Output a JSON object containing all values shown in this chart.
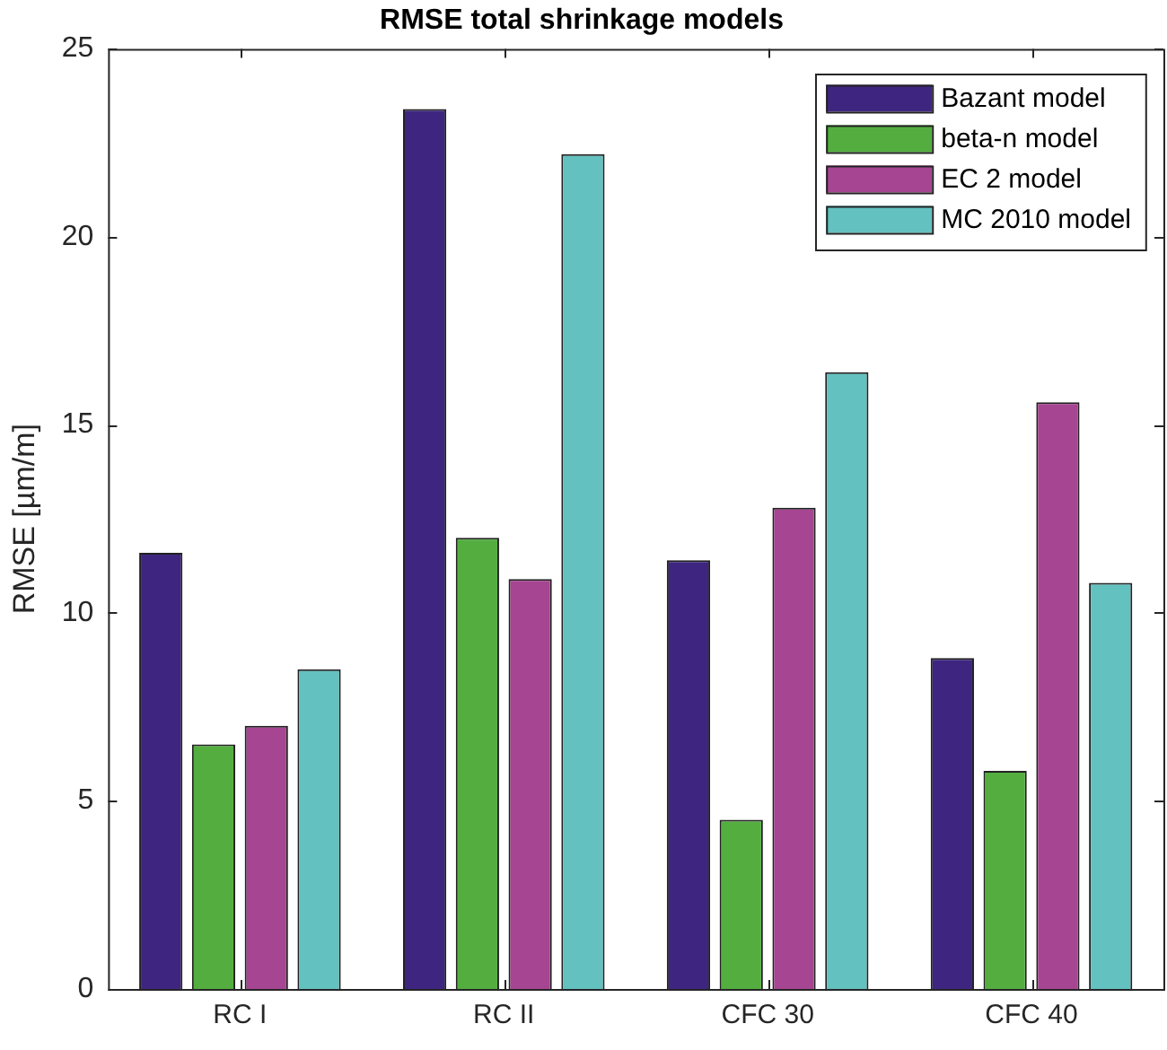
{
  "chart_data": {
    "type": "bar",
    "title": "RMSE total shrinkage models",
    "ylabel": "RMSE [µm/m]",
    "categories": [
      "RC I",
      "RC II",
      "CFC 30",
      "CFC 40"
    ],
    "series": [
      {
        "name": "Bazant model",
        "color": "#3e2680",
        "values": [
          11.6,
          23.4,
          11.4,
          8.8
        ]
      },
      {
        "name": "beta-n model",
        "color": "#53ae3f",
        "values": [
          6.5,
          12.0,
          4.5,
          5.8
        ]
      },
      {
        "name": "EC 2 model",
        "color": "#a64592",
        "values": [
          7.0,
          10.9,
          12.8,
          15.6
        ]
      },
      {
        "name": "MC 2010 model",
        "color": "#63c1c0",
        "values": [
          8.5,
          22.2,
          16.4,
          10.8
        ]
      }
    ],
    "ylim": [
      0,
      25
    ],
    "yticks": [
      0,
      5,
      10,
      15,
      20,
      25
    ],
    "grid": false,
    "legend": "top right"
  }
}
